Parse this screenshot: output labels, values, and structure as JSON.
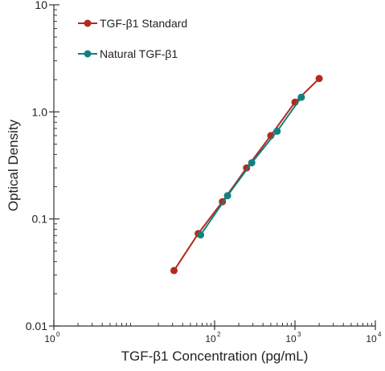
{
  "chart_data": {
    "type": "line",
    "title": "",
    "xlabel": "TGF-β1 Concentration (pg/mL)",
    "ylabel": "Optical Density",
    "x_scale": "log",
    "y_scale": "log",
    "xlim": [
      1,
      10000
    ],
    "ylim": [
      0.01,
      10
    ],
    "y_ticks": [
      {
        "value": 0.01,
        "label": "0.01"
      },
      {
        "value": 0.1,
        "label": "0.1"
      },
      {
        "value": 1,
        "label": "1.0"
      },
      {
        "value": 10,
        "label": "10"
      }
    ],
    "x_ticks": [
      {
        "value": 1,
        "base": "10",
        "exp": "0"
      },
      {
        "value": 100,
        "base": "10",
        "exp": "2"
      },
      {
        "value": 1000,
        "base": "10",
        "exp": "3"
      },
      {
        "value": 10000,
        "base": "10",
        "exp": "4"
      }
    ],
    "grid": false,
    "legend_position": "top-left",
    "series": [
      {
        "name": "TGF-β1 Standard",
        "color": "#b22a1e",
        "x": [
          31.25,
          62.5,
          125,
          250,
          500,
          1000,
          2000
        ],
        "y": [
          0.033,
          0.073,
          0.145,
          0.3,
          0.6,
          1.23,
          2.05
        ]
      },
      {
        "name": "Natural TGF-β1",
        "color": "#138080",
        "x": [
          67,
          145,
          290,
          600,
          1200
        ],
        "y": [
          0.071,
          0.165,
          0.335,
          0.66,
          1.37
        ]
      }
    ]
  }
}
